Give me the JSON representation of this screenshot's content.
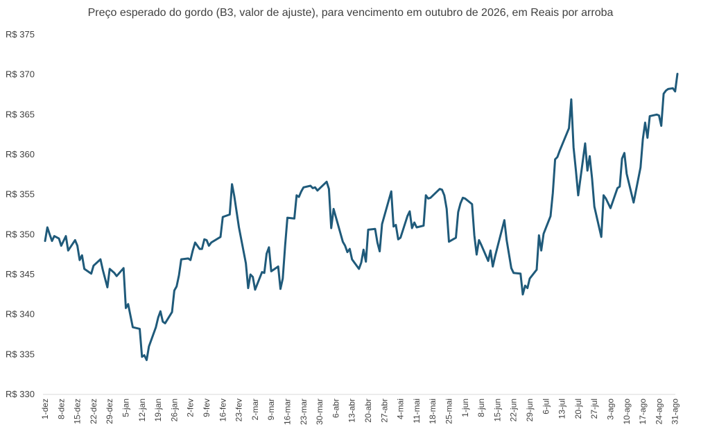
{
  "chart_data": {
    "type": "line",
    "title": "Preço esperado do gordo (B3, valor de ajuste), para vencimento em outubro de 2026, em Reais por arroba",
    "xlabel": "",
    "ylabel": "",
    "ylim": [
      330,
      375
    ],
    "yticks": [
      330,
      335,
      340,
      345,
      350,
      355,
      360,
      365,
      370,
      375
    ],
    "y_tick_prefix": "R$ ",
    "grid": false,
    "legend": "none",
    "line_color": "#1f5a7a",
    "x_tick_labels": [
      "1-dez",
      "8-dez",
      "15-dez",
      "22-dez",
      "29-dez",
      "5-jan",
      "12-jan",
      "19-jan",
      "26-jan",
      "2-fev",
      "9-fev",
      "16-fev",
      "23-fev",
      "2-mar",
      "9-mar",
      "16-mar",
      "23-mar",
      "30-mar",
      "6-abr",
      "13-abr",
      "20-abr",
      "27-abr",
      "4-mai",
      "11-mai",
      "18-mai",
      "25-mai",
      "1-jun",
      "8-jun",
      "15-jun",
      "22-jun",
      "29-jun",
      "6-jul",
      "13-jul",
      "20-jul",
      "27-jul",
      "3-ago",
      "10-ago",
      "17-ago",
      "24-ago",
      "31-ago"
    ],
    "series": [
      {
        "values": [
          [
            0,
            349.2
          ],
          [
            1,
            350.9
          ],
          [
            2,
            350.0
          ],
          [
            3,
            349.2
          ],
          [
            4,
            349.8
          ],
          [
            6,
            349.5
          ],
          [
            7,
            348.6
          ],
          [
            9,
            349.8
          ],
          [
            10,
            348.0
          ],
          [
            13,
            349.3
          ],
          [
            14,
            348.6
          ],
          [
            15,
            346.8
          ],
          [
            16,
            347.4
          ],
          [
            17,
            345.7
          ],
          [
            20,
            345.1
          ],
          [
            21,
            346.1
          ],
          [
            24,
            346.9
          ],
          [
            25,
            345.6
          ],
          [
            27,
            343.4
          ],
          [
            28,
            345.7
          ],
          [
            30,
            345.2
          ],
          [
            31,
            344.8
          ],
          [
            34,
            345.8
          ],
          [
            35,
            340.8
          ],
          [
            36,
            341.3
          ],
          [
            38,
            338.4
          ],
          [
            41,
            338.2
          ],
          [
            42,
            334.7
          ],
          [
            43,
            334.9
          ],
          [
            44,
            334.3
          ],
          [
            45,
            336.0
          ],
          [
            48,
            338.4
          ],
          [
            49,
            339.6
          ],
          [
            50,
            340.4
          ],
          [
            51,
            339.1
          ],
          [
            52,
            338.9
          ],
          [
            55,
            340.3
          ],
          [
            56,
            343.0
          ],
          [
            57,
            343.5
          ],
          [
            58,
            344.9
          ],
          [
            59,
            346.9
          ],
          [
            62,
            347.0
          ],
          [
            63,
            346.8
          ],
          [
            64,
            348.0
          ],
          [
            65,
            349.0
          ],
          [
            66,
            348.6
          ],
          [
            67,
            348.2
          ],
          [
            68,
            348.2
          ],
          [
            69,
            349.4
          ],
          [
            70,
            349.3
          ],
          [
            71,
            348.6
          ],
          [
            72,
            349.0
          ],
          [
            76,
            349.7
          ],
          [
            77,
            352.2
          ],
          [
            80,
            352.5
          ],
          [
            81,
            356.3
          ],
          [
            82,
            354.8
          ],
          [
            84,
            350.9
          ],
          [
            87,
            346.4
          ],
          [
            88,
            343.3
          ],
          [
            89,
            345.0
          ],
          [
            90,
            344.7
          ],
          [
            91,
            343.1
          ],
          [
            94,
            345.3
          ],
          [
            95,
            345.2
          ],
          [
            96,
            347.6
          ],
          [
            97,
            348.4
          ],
          [
            98,
            345.4
          ],
          [
            101,
            346.0
          ],
          [
            102,
            343.2
          ],
          [
            103,
            344.5
          ],
          [
            104,
            348.6
          ],
          [
            105,
            352.1
          ],
          [
            108,
            352.0
          ],
          [
            109,
            354.9
          ],
          [
            110,
            354.7
          ],
          [
            111,
            355.4
          ],
          [
            112,
            355.9
          ],
          [
            115,
            356.1
          ],
          [
            116,
            355.8
          ],
          [
            117,
            355.9
          ],
          [
            118,
            355.5
          ],
          [
            122,
            356.6
          ],
          [
            123,
            355.7
          ],
          [
            124,
            350.8
          ],
          [
            125,
            353.2
          ],
          [
            129,
            349.1
          ],
          [
            130,
            348.6
          ],
          [
            131,
            347.8
          ],
          [
            132,
            348.2
          ],
          [
            133,
            346.9
          ],
          [
            136,
            345.7
          ],
          [
            137,
            346.5
          ],
          [
            138,
            348.1
          ],
          [
            139,
            346.6
          ],
          [
            140,
            350.6
          ],
          [
            143,
            350.7
          ],
          [
            144,
            349.0
          ],
          [
            145,
            347.9
          ],
          [
            146,
            351.3
          ],
          [
            150,
            355.4
          ],
          [
            151,
            351.0
          ],
          [
            152,
            351.2
          ],
          [
            153,
            349.4
          ],
          [
            154,
            349.6
          ],
          [
            157,
            352.3
          ],
          [
            158,
            352.9
          ],
          [
            159,
            350.8
          ],
          [
            160,
            351.5
          ],
          [
            161,
            350.9
          ],
          [
            164,
            351.1
          ],
          [
            165,
            354.9
          ],
          [
            166,
            354.5
          ],
          [
            167,
            354.6
          ],
          [
            171,
            355.7
          ],
          [
            172,
            355.6
          ],
          [
            173,
            354.9
          ],
          [
            174,
            353.2
          ],
          [
            175,
            349.1
          ],
          [
            178,
            349.6
          ],
          [
            179,
            352.8
          ],
          [
            180,
            353.9
          ],
          [
            181,
            354.6
          ],
          [
            182,
            354.5
          ],
          [
            185,
            353.8
          ],
          [
            186,
            349.9
          ],
          [
            187,
            347.5
          ],
          [
            188,
            349.3
          ],
          [
            189,
            348.7
          ],
          [
            192,
            346.7
          ],
          [
            193,
            348.0
          ],
          [
            194,
            346.0
          ],
          [
            195,
            347.3
          ],
          [
            199,
            351.8
          ],
          [
            200,
            349.3
          ],
          [
            202,
            345.8
          ],
          [
            203,
            345.2
          ],
          [
            206,
            345.1
          ],
          [
            207,
            342.5
          ],
          [
            208,
            343.6
          ],
          [
            209,
            343.3
          ],
          [
            210,
            344.5
          ],
          [
            213,
            345.6
          ],
          [
            214,
            349.9
          ],
          [
            215,
            348.0
          ],
          [
            216,
            350.1
          ],
          [
            219,
            352.3
          ],
          [
            220,
            355.2
          ],
          [
            221,
            359.4
          ],
          [
            222,
            359.7
          ],
          [
            223,
            360.5
          ],
          [
            227,
            363.3
          ],
          [
            228,
            366.9
          ],
          [
            229,
            360.9
          ],
          [
            230,
            358.0
          ],
          [
            231,
            354.9
          ],
          [
            234,
            361.4
          ],
          [
            235,
            358.0
          ],
          [
            236,
            359.8
          ],
          [
            237,
            357.0
          ],
          [
            238,
            353.5
          ],
          [
            241,
            349.7
          ],
          [
            242,
            354.9
          ],
          [
            243,
            354.5
          ],
          [
            245,
            353.3
          ],
          [
            248,
            355.8
          ],
          [
            249,
            356.0
          ],
          [
            250,
            359.5
          ],
          [
            251,
            360.2
          ],
          [
            252,
            357.6
          ],
          [
            255,
            354.0
          ],
          [
            258,
            358.4
          ],
          [
            259,
            361.9
          ],
          [
            260,
            364.0
          ],
          [
            261,
            362.1
          ],
          [
            262,
            364.8
          ],
          [
            265,
            365.0
          ],
          [
            266,
            364.9
          ],
          [
            267,
            363.6
          ],
          [
            268,
            367.6
          ],
          [
            269,
            368.0
          ],
          [
            270,
            368.2
          ],
          [
            272,
            368.3
          ],
          [
            273,
            367.9
          ],
          [
            274,
            370.1
          ]
        ]
      }
    ]
  }
}
